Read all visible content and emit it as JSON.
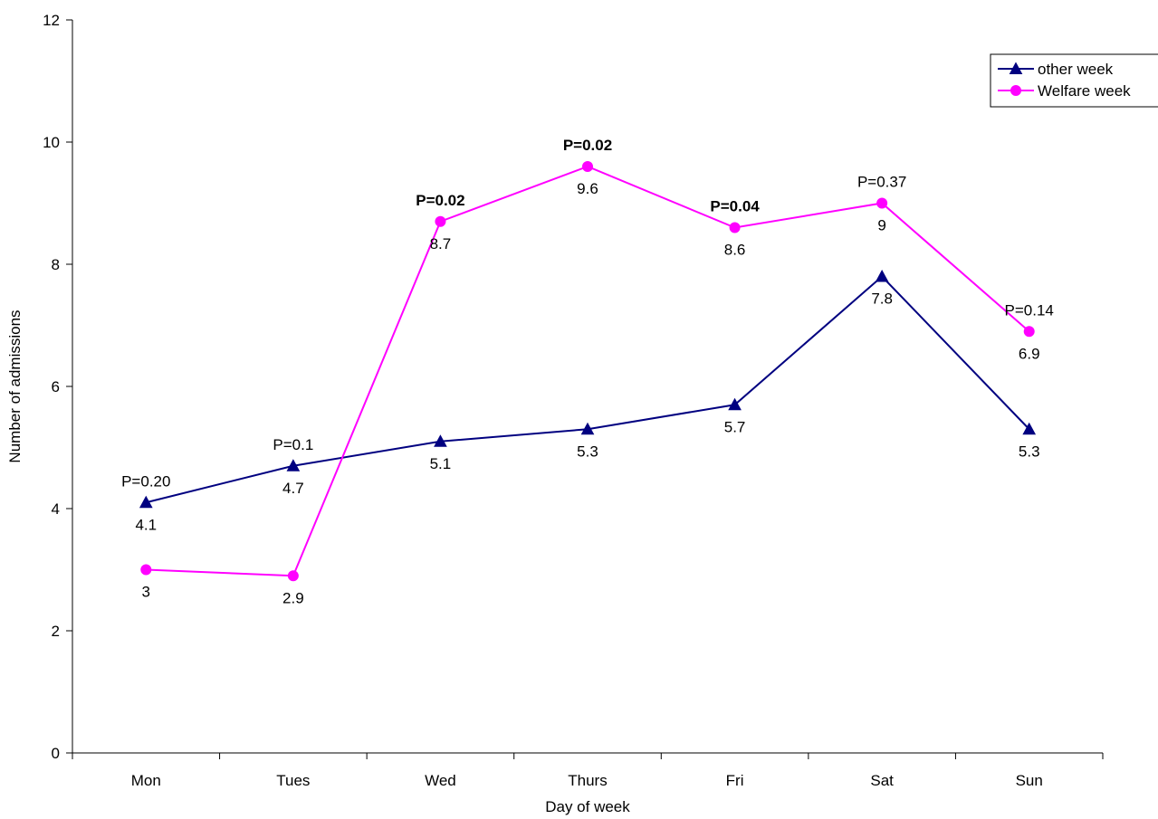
{
  "chart_data": {
    "type": "line",
    "title": "",
    "xlabel": "Day of week",
    "ylabel": "Number of admissions",
    "categories": [
      "Mon",
      "Tues",
      "Wed",
      "Thurs",
      "Fri",
      "Sat",
      "Sun"
    ],
    "ylim": [
      0,
      12
    ],
    "yticks": [
      0,
      2,
      4,
      6,
      8,
      10,
      12
    ],
    "grid": false,
    "legend_position": "top-right",
    "series": [
      {
        "name": "other week",
        "color": "#000080",
        "marker": "triangle",
        "values": [
          4.1,
          4.7,
          5.1,
          5.3,
          5.7,
          7.8,
          5.3
        ],
        "labels": [
          "4.1",
          "4.7",
          "5.1",
          "5.3",
          "5.7",
          "7.8",
          "5.3"
        ]
      },
      {
        "name": "Welfare week",
        "color": "#ff00ff",
        "marker": "circle",
        "values": [
          3,
          2.9,
          8.7,
          9.6,
          8.6,
          9,
          6.9
        ],
        "labels": [
          "3",
          "2.9",
          "8.7",
          "9.6",
          "8.6",
          "9",
          "6.9"
        ]
      }
    ],
    "annotations": [
      {
        "category": "Mon",
        "text": "P=0.20",
        "bold": false
      },
      {
        "category": "Tues",
        "text": "P=0.1",
        "bold": false
      },
      {
        "category": "Wed",
        "text": "P=0.02",
        "bold": true
      },
      {
        "category": "Thurs",
        "text": "P=0.02",
        "bold": true
      },
      {
        "category": "Fri",
        "text": "P=0.04",
        "bold": true
      },
      {
        "category": "Sat",
        "text": "P=0.37",
        "bold": false
      },
      {
        "category": "Sun",
        "text": "P=0.14",
        "bold": false
      }
    ]
  }
}
